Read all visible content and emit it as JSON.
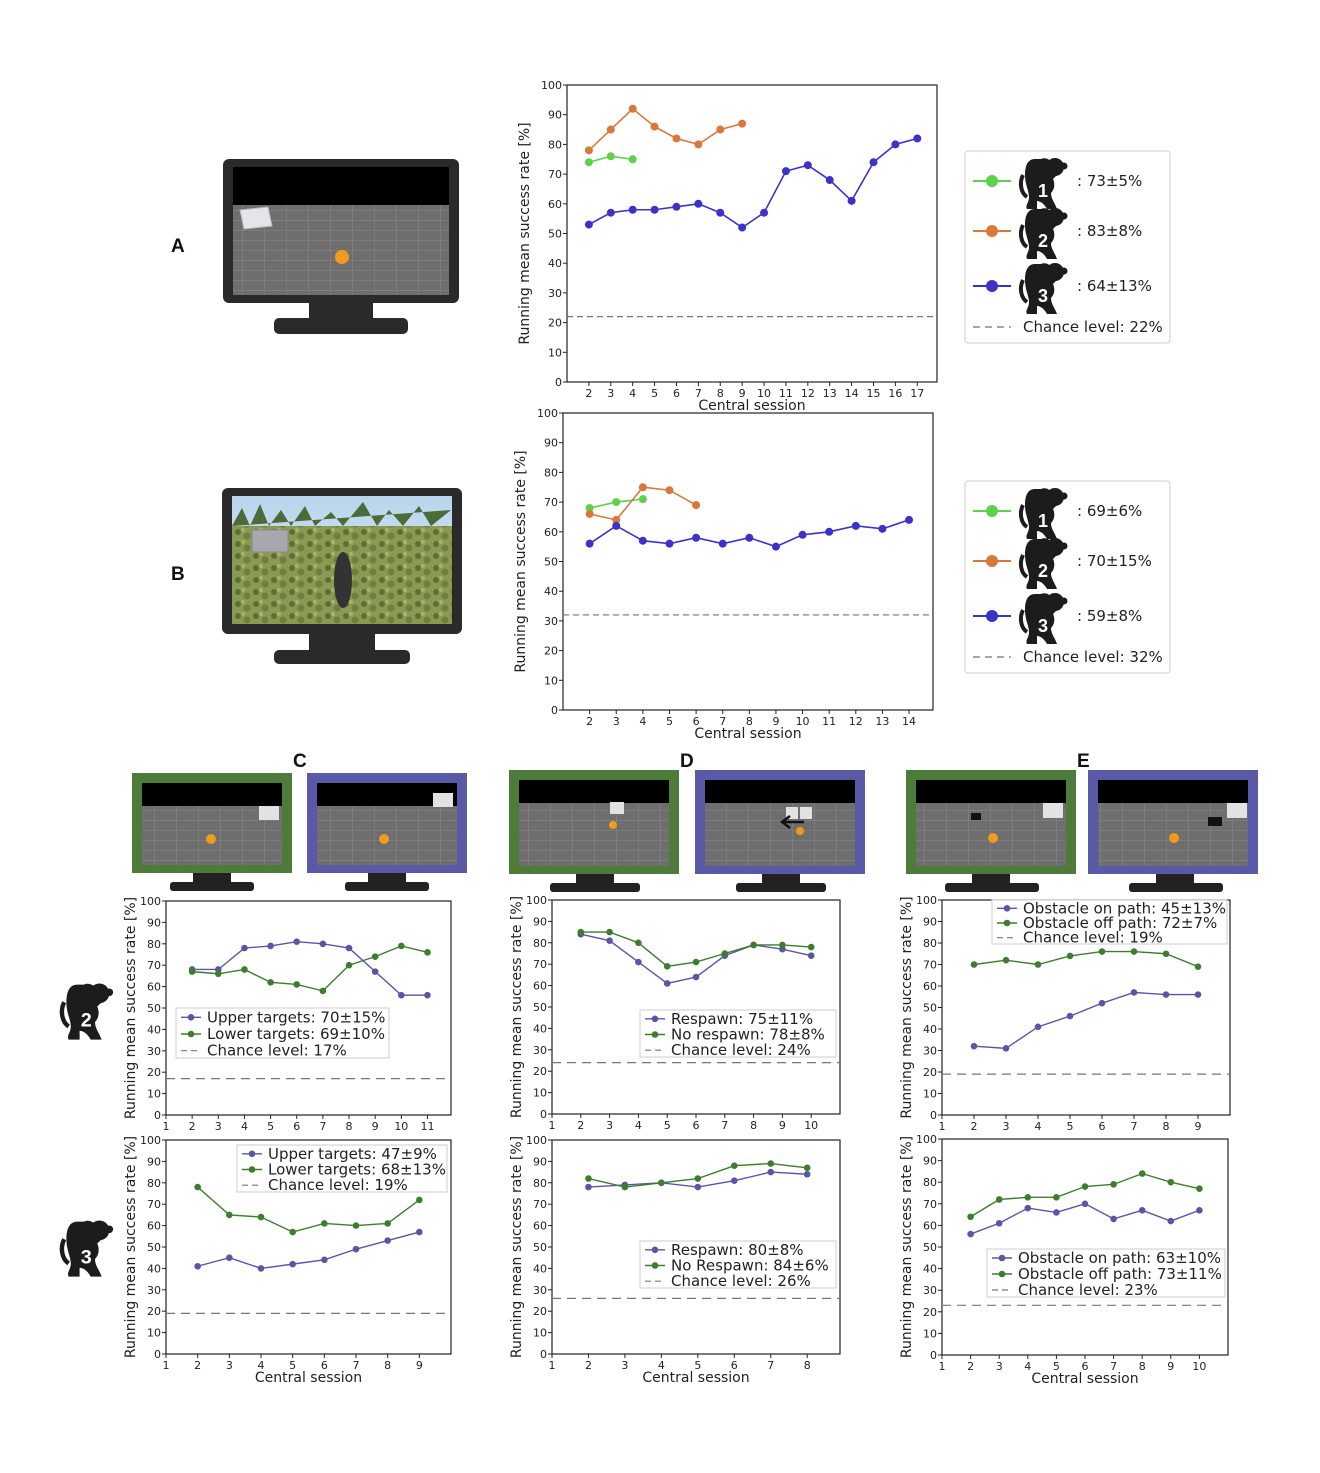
{
  "panels": {
    "A": "A",
    "B": "B",
    "C": "C",
    "D": "D",
    "E": "E"
  },
  "colors": {
    "green": "#5ed14a",
    "orange": "#d9783a",
    "blue": "#3b33c9",
    "purple_series": "#5b55a6",
    "darkgreen_series": "#3e7d2e",
    "monitor_green": "#4d7c3a",
    "monitor_blue": "#5a59a8"
  },
  "icons": {
    "monkey": "monkey-icon",
    "monitor": "monitor-icon"
  },
  "legends": {
    "A": [
      {
        "badge": "1",
        "text": ": 73±5%"
      },
      {
        "badge": "2",
        "text": ": 83±8%"
      },
      {
        "badge": "3",
        "text": ": 64±13%"
      },
      {
        "badge": "",
        "text": "Chance level: 22%"
      }
    ],
    "B": [
      {
        "badge": "1",
        "text": ": 69±6%"
      },
      {
        "badge": "2",
        "text": ": 70±15%"
      },
      {
        "badge": "3",
        "text": ": 59±8%"
      },
      {
        "badge": "",
        "text": "Chance level: 32%"
      }
    ]
  },
  "row_badges": [
    "2",
    "3"
  ],
  "chart_data": [
    {
      "id": "A",
      "type": "line",
      "xlabel": "Central session",
      "ylabel": "Running mean success rate [%]",
      "xlim": [
        1,
        17.9
      ],
      "ylim": [
        0,
        100
      ],
      "xticks": [
        2,
        3,
        4,
        5,
        6,
        7,
        8,
        9,
        10,
        11,
        12,
        13,
        14,
        15,
        16,
        17
      ],
      "yticks": [
        0,
        10,
        20,
        30,
        40,
        50,
        60,
        70,
        80,
        90,
        100
      ],
      "chance": 22,
      "series": [
        {
          "color": "#5ed14a",
          "x": [
            2,
            3,
            4
          ],
          "y": [
            74,
            76,
            75
          ]
        },
        {
          "color": "#d9783a",
          "x": [
            2,
            3,
            4,
            5,
            6,
            7,
            8,
            9
          ],
          "y": [
            78,
            85,
            92,
            86,
            82,
            80,
            85,
            87
          ]
        },
        {
          "color": "#3b33c9",
          "x": [
            2,
            3,
            4,
            5,
            6,
            7,
            8,
            9,
            10,
            11,
            12,
            13,
            14,
            15,
            16,
            17
          ],
          "y": [
            53,
            57,
            58,
            58,
            59,
            60,
            57,
            52,
            57,
            71,
            73,
            68,
            61,
            74,
            80,
            82
          ]
        }
      ]
    },
    {
      "id": "B",
      "type": "line",
      "xlabel": "Central session",
      "ylabel": "Running mean success rate [%]",
      "xlim": [
        1,
        14.9
      ],
      "ylim": [
        0,
        100
      ],
      "xticks": [
        2,
        3,
        4,
        5,
        6,
        7,
        8,
        9,
        10,
        11,
        12,
        13,
        14
      ],
      "yticks": [
        0,
        10,
        20,
        30,
        40,
        50,
        60,
        70,
        80,
        90,
        100
      ],
      "chance": 32,
      "series": [
        {
          "color": "#5ed14a",
          "x": [
            2,
            3,
            4
          ],
          "y": [
            68,
            70,
            71
          ]
        },
        {
          "color": "#d9783a",
          "x": [
            2,
            3,
            4,
            5,
            6
          ],
          "y": [
            66,
            64,
            75,
            74,
            69
          ]
        },
        {
          "color": "#3b33c9",
          "x": [
            2,
            3,
            4,
            5,
            6,
            7,
            8,
            9,
            10,
            11,
            12,
            13,
            14
          ],
          "y": [
            56,
            62,
            57,
            56,
            58,
            56,
            58,
            55,
            59,
            60,
            62,
            61,
            64
          ]
        }
      ]
    },
    {
      "id": "C2",
      "type": "line",
      "xlabel": "",
      "ylabel": "Running mean success rate [%]",
      "xlim": [
        1,
        11.9
      ],
      "ylim": [
        0,
        100
      ],
      "xticks": [
        1,
        2,
        3,
        4,
        5,
        6,
        7,
        8,
        9,
        10,
        11
      ],
      "yticks": [
        0,
        10,
        20,
        30,
        40,
        50,
        60,
        70,
        80,
        90,
        100
      ],
      "chance": 17,
      "legend": [
        "Upper targets: 70±15%",
        "Lower targets: 69±10%",
        "Chance level: 17%"
      ],
      "series": [
        {
          "name": "Upper targets: 70±15%",
          "color": "#5b55a6",
          "x": [
            2,
            3,
            4,
            5,
            6,
            7,
            8,
            9,
            10,
            11
          ],
          "y": [
            68,
            68,
            78,
            79,
            81,
            80,
            78,
            67,
            56,
            56
          ]
        },
        {
          "name": "Lower targets: 69±10%",
          "color": "#3e7d2e",
          "x": [
            2,
            3,
            4,
            5,
            6,
            7,
            8,
            9,
            10,
            11
          ],
          "y": [
            67,
            66,
            68,
            62,
            61,
            58,
            70,
            74,
            79,
            76
          ]
        }
      ]
    },
    {
      "id": "C3",
      "type": "line",
      "xlabel": "Central session",
      "ylabel": "Running mean success rate [%]",
      "xlim": [
        1,
        10
      ],
      "ylim": [
        0,
        100
      ],
      "xticks": [
        1,
        2,
        3,
        4,
        5,
        6,
        7,
        8,
        9
      ],
      "yticks": [
        0,
        10,
        20,
        30,
        40,
        50,
        60,
        70,
        80,
        90,
        100
      ],
      "chance": 19,
      "legend": [
        "Upper targets: 47±9%",
        "Lower targets: 68±13%",
        "Chance level: 19%"
      ],
      "series": [
        {
          "name": "Upper targets: 47±9%",
          "color": "#5b55a6",
          "x": [
            2,
            3,
            4,
            5,
            6,
            7,
            8,
            9
          ],
          "y": [
            41,
            45,
            40,
            42,
            44,
            49,
            53,
            57
          ]
        },
        {
          "name": "Lower targets: 68±13%",
          "color": "#3e7d2e",
          "x": [
            2,
            3,
            4,
            5,
            6,
            7,
            8,
            9
          ],
          "y": [
            78,
            65,
            64,
            57,
            61,
            60,
            61,
            72
          ]
        }
      ]
    },
    {
      "id": "D2",
      "type": "line",
      "xlabel": "",
      "ylabel": "Running mean success rate [%]",
      "xlim": [
        1,
        11
      ],
      "ylim": [
        0,
        100
      ],
      "xticks": [
        1,
        2,
        3,
        4,
        5,
        6,
        7,
        8,
        9,
        10
      ],
      "yticks": [
        0,
        10,
        20,
        30,
        40,
        50,
        60,
        70,
        80,
        90,
        100
      ],
      "chance": 24,
      "legend": [
        "Respawn: 75±11%",
        "No respawn: 78±8%",
        "Chance level: 24%"
      ],
      "series": [
        {
          "name": "Respawn: 75±11%",
          "color": "#5b55a6",
          "x": [
            2,
            3,
            4,
            5,
            6,
            7,
            8,
            9,
            10
          ],
          "y": [
            84,
            81,
            71,
            61,
            64,
            74,
            79,
            77,
            74
          ]
        },
        {
          "name": "No respawn: 78±8%",
          "color": "#3e7d2e",
          "x": [
            2,
            3,
            4,
            5,
            6,
            7,
            8,
            9,
            10
          ],
          "y": [
            85,
            85,
            80,
            69,
            71,
            75,
            79,
            79,
            78
          ]
        }
      ]
    },
    {
      "id": "D3",
      "type": "line",
      "xlabel": "Central session",
      "ylabel": "Running mean success rate [%]",
      "xlim": [
        1,
        8.9
      ],
      "ylim": [
        0,
        100
      ],
      "xticks": [
        1,
        2,
        3,
        4,
        5,
        6,
        7,
        8
      ],
      "yticks": [
        0,
        10,
        20,
        30,
        40,
        50,
        60,
        70,
        80,
        90,
        100
      ],
      "chance": 26,
      "legend": [
        "Respawn: 80±8%",
        "No Respawn: 84±6%",
        "Chance level: 26%"
      ],
      "series": [
        {
          "name": "Respawn: 80±8%",
          "color": "#5b55a6",
          "x": [
            2,
            3,
            4,
            5,
            6,
            7,
            8
          ],
          "y": [
            78,
            79,
            80,
            78,
            81,
            85,
            84
          ]
        },
        {
          "name": "No Respawn: 84±6%",
          "color": "#3e7d2e",
          "x": [
            2,
            3,
            4,
            5,
            6,
            7,
            8
          ],
          "y": [
            82,
            78,
            80,
            82,
            88,
            89,
            87
          ]
        }
      ]
    },
    {
      "id": "E2",
      "type": "line",
      "xlabel": "",
      "ylabel": "Running mean success rate [%]",
      "xlim": [
        1,
        10
      ],
      "ylim": [
        0,
        100
      ],
      "xticks": [
        1,
        2,
        3,
        4,
        5,
        6,
        7,
        8,
        9
      ],
      "yticks": [
        0,
        10,
        20,
        30,
        40,
        50,
        60,
        70,
        80,
        90,
        100
      ],
      "chance": 19,
      "legend": [
        "Obstacle on path: 45±13%",
        "Obstacle off path: 72±7%",
        "Chance level: 19%"
      ],
      "series": [
        {
          "name": "Obstacle on path: 45±13%",
          "color": "#5b55a6",
          "x": [
            2,
            3,
            4,
            5,
            6,
            7,
            8,
            9
          ],
          "y": [
            32,
            31,
            41,
            46,
            52,
            57,
            56,
            56
          ]
        },
        {
          "name": "Obstacle off path: 72±7%",
          "color": "#3e7d2e",
          "x": [
            2,
            3,
            4,
            5,
            6,
            7,
            8,
            9
          ],
          "y": [
            70,
            72,
            70,
            74,
            76,
            76,
            75,
            69
          ]
        }
      ]
    },
    {
      "id": "E3",
      "type": "line",
      "xlabel": "Central session",
      "ylabel": "Running mean success rate [%]",
      "xlim": [
        1,
        11
      ],
      "ylim": [
        0,
        100
      ],
      "xticks": [
        1,
        2,
        3,
        4,
        5,
        6,
        7,
        8,
        9,
        10
      ],
      "yticks": [
        0,
        10,
        20,
        30,
        40,
        50,
        60,
        70,
        80,
        90,
        100
      ],
      "chance": 23,
      "legend": [
        "Obstacle on path: 63±10%",
        "Obstacle off path: 73±11%",
        "Chance level: 23%"
      ],
      "series": [
        {
          "name": "Obstacle on path: 63±10%",
          "color": "#5b55a6",
          "x": [
            2,
            3,
            4,
            5,
            6,
            7,
            8,
            9,
            10
          ],
          "y": [
            56,
            61,
            68,
            66,
            70,
            63,
            67,
            62,
            67
          ]
        },
        {
          "name": "Obstacle off path: 73±11%",
          "color": "#3e7d2e",
          "x": [
            2,
            3,
            4,
            5,
            6,
            7,
            8,
            9,
            10
          ],
          "y": [
            64,
            72,
            73,
            73,
            78,
            79,
            84,
            80,
            77
          ]
        }
      ]
    }
  ]
}
